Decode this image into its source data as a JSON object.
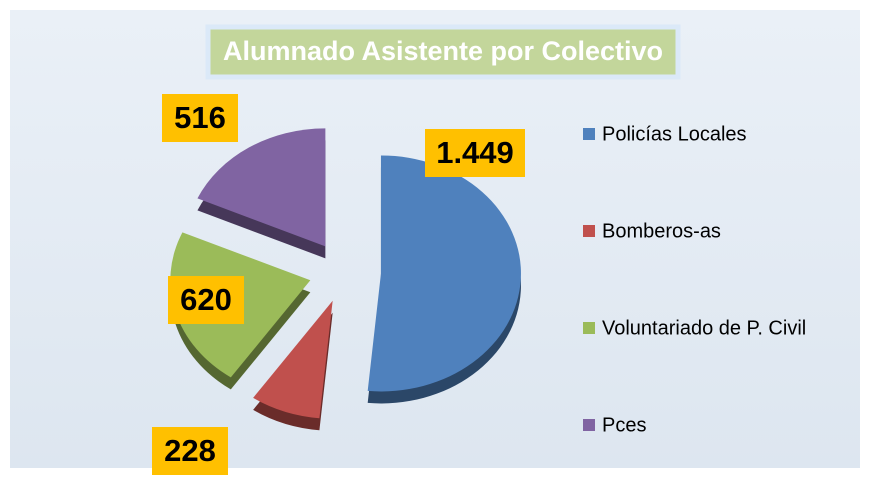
{
  "chart_data": {
    "type": "pie",
    "title": "Alumnado Asistente por Colectivo",
    "categories": [
      "Policías Locales",
      "Bomberos-as",
      "Voluntariado de P. Civil",
      "Pces"
    ],
    "values": [
      1449,
      228,
      620,
      516
    ],
    "value_labels": [
      "1.449",
      "228",
      "620",
      "516"
    ],
    "colors": [
      "#4f81bd",
      "#c0504d",
      "#9bbb59",
      "#8064a2"
    ],
    "legend": "right"
  }
}
